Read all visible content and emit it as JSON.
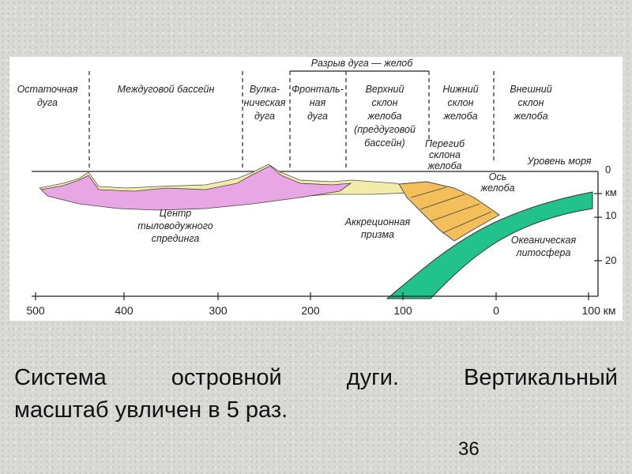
{
  "diagram": {
    "header": "Разрыв дуга — желоб",
    "zones": [
      [
        "Остаточная",
        "дуга"
      ],
      [
        "Междуговой бассейн"
      ],
      [
        "Вулка-",
        "ническая",
        "дуга"
      ],
      [
        "Фронталь-",
        "ная",
        "дуга"
      ],
      [
        "Верхний",
        "склон",
        "желоба",
        "(преддуговой",
        "бассейн)"
      ],
      [
        "Нижний",
        "склон",
        "желоба"
      ],
      [
        "Внешний",
        "склон",
        "желоба"
      ]
    ],
    "annotations": {
      "sea_level": [
        "Уровень моря"
      ],
      "slope_break": [
        "Перегиб",
        "склона",
        "желоба"
      ],
      "trench_axis": [
        "Ось",
        "желоба"
      ],
      "prism": [
        "Аккреционная",
        "призма"
      ],
      "lithosphere": [
        "Океаническая",
        "литосфера"
      ],
      "spreading": [
        "Центр",
        "тыловодужного",
        "спрединга"
      ]
    },
    "x_axis": [
      "500",
      "400",
      "300",
      "200",
      "100",
      "0",
      "100 км"
    ],
    "depth_axis": [
      "0",
      "км",
      "10",
      "20"
    ]
  },
  "caption": [
    "Система островной дуги. Вертикальный",
    "масштаб увличен в 5 раз."
  ],
  "page_number": "36"
}
